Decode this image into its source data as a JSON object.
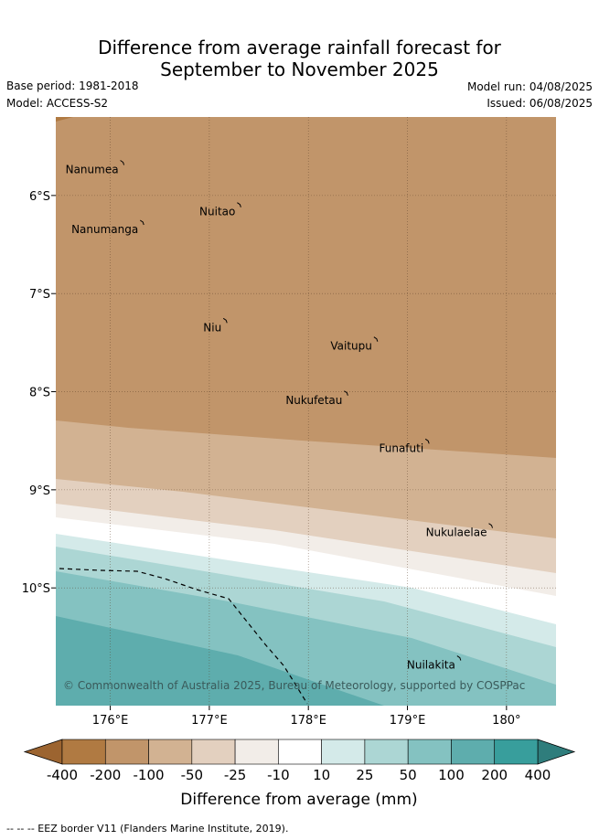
{
  "title": {
    "line1": "Difference from average rainfall forecast for",
    "line2": "September to November 2025"
  },
  "meta": {
    "base_period": "Base period: 1981-2018",
    "model": "Model: ACCESS-S2",
    "model_run": "Model run: 04/08/2025",
    "issued": "Issued: 06/08/2025"
  },
  "map": {
    "lon_range": [
      175.45,
      180.5
    ],
    "lat_range": [
      -11.2,
      -5.2
    ],
    "lon_ticks": [
      {
        "value": 176,
        "label": "176°E"
      },
      {
        "value": 177,
        "label": "177°E"
      },
      {
        "value": 178,
        "label": "178°E"
      },
      {
        "value": 179,
        "label": "179°E"
      },
      {
        "value": 180,
        "label": "180°"
      }
    ],
    "lat_ticks": [
      {
        "value": -6,
        "label": "6°S"
      },
      {
        "value": -7,
        "label": "7°S"
      },
      {
        "value": -8,
        "label": "8°S"
      },
      {
        "value": -9,
        "label": "9°S"
      },
      {
        "value": -10,
        "label": "10°S"
      }
    ],
    "islands": [
      {
        "name": "Nanumea",
        "lon": 176.12,
        "lat": -5.68
      },
      {
        "name": "Nuitao",
        "lon": 177.3,
        "lat": -6.11
      },
      {
        "name": "Nanumanga",
        "lon": 176.32,
        "lat": -6.29
      },
      {
        "name": "Niu",
        "lon": 177.16,
        "lat": -7.29
      },
      {
        "name": "Vaitupu",
        "lon": 178.68,
        "lat": -7.48
      },
      {
        "name": "Nukufetau",
        "lon": 178.38,
        "lat": -8.03
      },
      {
        "name": "Funafuti",
        "lon": 179.2,
        "lat": -8.52
      },
      {
        "name": "Nukulaelae",
        "lon": 179.84,
        "lat": -9.38
      },
      {
        "name": "Nuilakita",
        "lon": 179.52,
        "lat": -10.73
      }
    ],
    "copyright": "© Commonwealth of Australia 2025, Bureau of Meteorology, supported by COSPPac"
  },
  "colorbar": {
    "labels": [
      "-400",
      "-200",
      "-100",
      "-50",
      "-25",
      "-10",
      "10",
      "25",
      "50",
      "100",
      "200",
      "400"
    ],
    "colors": [
      "#b07a42",
      "#c1956a",
      "#d2b292",
      "#e3d0bf",
      "#f2ede8",
      "#ffffff",
      "#d4eae9",
      "#acd6d4",
      "#84c2c1",
      "#5eadad",
      "#389e9c"
    ],
    "under_color": "#9c6430",
    "over_color": "#2f7d7c",
    "label": "Difference from average (mm)"
  },
  "footnote": "-- -- -- EEZ border V11 (Flanders Marine Institute, 2019)."
}
